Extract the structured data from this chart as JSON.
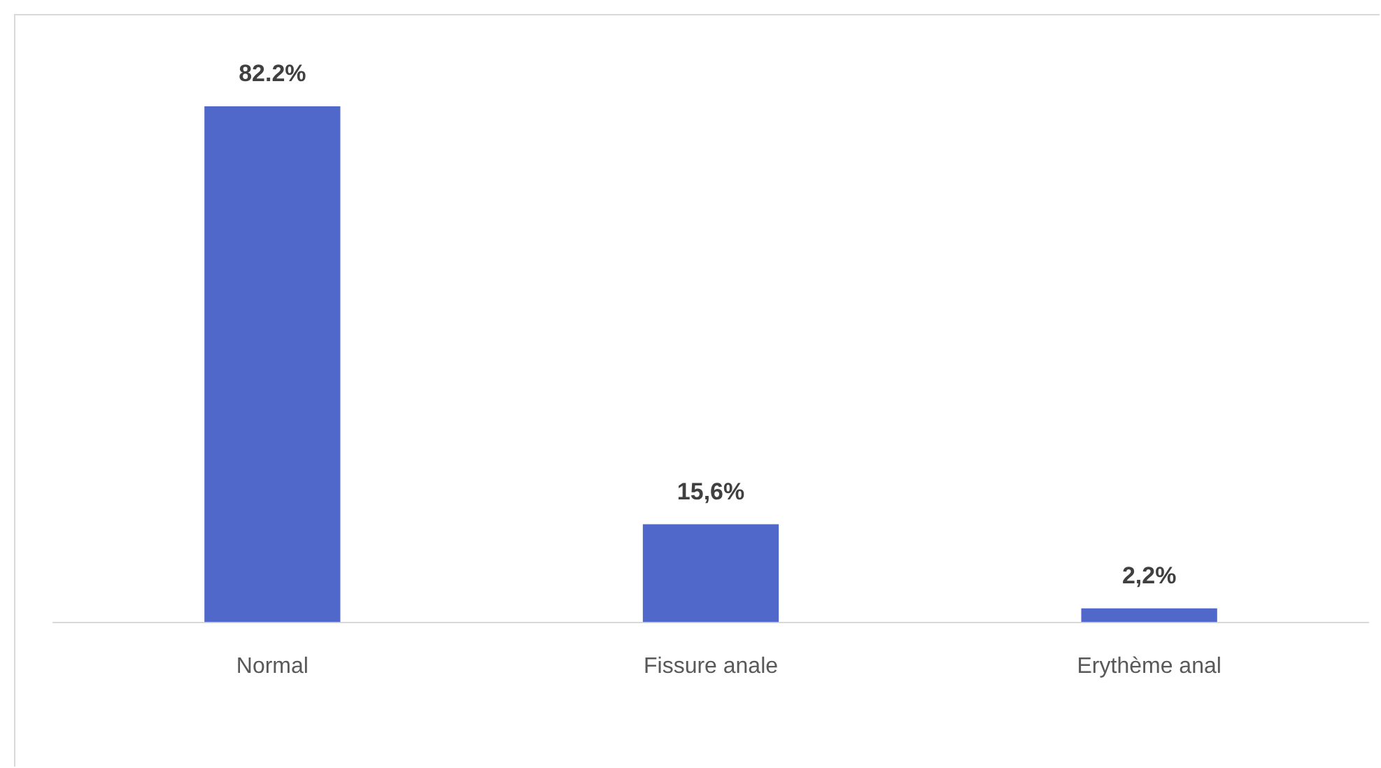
{
  "chart_data": {
    "type": "bar",
    "categories": [
      "Normal",
      "Fissure anale",
      "Erythème anal"
    ],
    "values": [
      82.2,
      15.6,
      2.2
    ],
    "color": "#4f68c9",
    "value_labels": [
      "82.2%",
      "15,6%",
      "2,2%"
    ]
  }
}
